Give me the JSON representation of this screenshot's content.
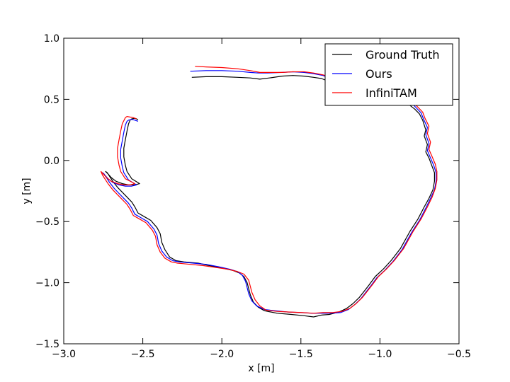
{
  "chart_data": {
    "type": "line",
    "title": "",
    "xlabel": "x [m]",
    "ylabel": "y [m]",
    "xlim": [
      -3.0,
      -0.5
    ],
    "ylim": [
      -1.5,
      1.0
    ],
    "grid": false,
    "legend_position": "top-right",
    "xticks": [
      -3.0,
      -2.5,
      -2.0,
      -1.5,
      -1.0,
      -0.5
    ],
    "yticks": [
      -1.5,
      -1.0,
      -0.5,
      0.0,
      0.5,
      1.0
    ],
    "xtick_labels": [
      "−3.0",
      "−2.5",
      "−2.0",
      "−1.5",
      "−1.0",
      "−0.5"
    ],
    "ytick_labels": [
      "−1.5",
      "−1.0",
      "−0.5",
      "0.0",
      "0.5",
      "1.0"
    ],
    "series": [
      {
        "name": "Ground Truth",
        "color": "#000000",
        "x": [
          -2.19,
          -2.1,
          -2.0,
          -1.9,
          -1.82,
          -1.76,
          -1.7,
          -1.62,
          -1.55,
          -1.48,
          -1.42,
          -1.37,
          -1.33,
          -1.3,
          -1.27,
          -1.22,
          -1.15,
          -1.08,
          -1.0,
          -0.93,
          -0.87,
          -0.82,
          -0.78,
          -0.75,
          -0.73,
          -0.71,
          -0.72,
          -0.7,
          -0.71,
          -0.69,
          -0.67,
          -0.655,
          -0.655,
          -0.665,
          -0.69,
          -0.72,
          -0.76,
          -0.81,
          -0.87,
          -0.93,
          -0.98,
          -1.03,
          -1.07,
          -1.1,
          -1.13,
          -1.17,
          -1.21,
          -1.26,
          -1.32,
          -1.37,
          -1.42,
          -1.48,
          -1.56,
          -1.65,
          -1.73,
          -1.77,
          -1.8,
          -1.82,
          -1.84,
          -1.86,
          -1.89,
          -1.93,
          -2.0,
          -2.08,
          -2.15,
          -2.24,
          -2.29,
          -2.33,
          -2.36,
          -2.38,
          -2.39,
          -2.41,
          -2.45,
          -2.49,
          -2.53,
          -2.55,
          -2.57,
          -2.6,
          -2.63,
          -2.66,
          -2.69,
          -2.71,
          -2.725,
          -2.735,
          -2.72,
          -2.7,
          -2.67,
          -2.63,
          -2.59,
          -2.55,
          -2.52,
          -2.57,
          -2.6,
          -2.61,
          -2.62,
          -2.62,
          -2.61,
          -2.6,
          -2.59,
          -2.58,
          -2.57,
          -2.55,
          -2.54,
          -2.53
        ],
        "y": [
          0.68,
          0.685,
          0.685,
          0.68,
          0.675,
          0.665,
          0.675,
          0.69,
          0.695,
          0.69,
          0.68,
          0.67,
          0.65,
          0.635,
          0.62,
          0.6,
          0.58,
          0.56,
          0.55,
          0.53,
          0.5,
          0.46,
          0.42,
          0.38,
          0.33,
          0.25,
          0.2,
          0.13,
          0.07,
          0.02,
          -0.05,
          -0.1,
          -0.17,
          -0.24,
          -0.31,
          -0.38,
          -0.48,
          -0.58,
          -0.72,
          -0.82,
          -0.89,
          -0.95,
          -1.02,
          -1.07,
          -1.12,
          -1.17,
          -1.21,
          -1.24,
          -1.26,
          -1.265,
          -1.28,
          -1.27,
          -1.26,
          -1.25,
          -1.23,
          -1.2,
          -1.16,
          -1.1,
          -1.0,
          -0.95,
          -0.92,
          -0.9,
          -0.88,
          -0.86,
          -0.84,
          -0.83,
          -0.82,
          -0.79,
          -0.73,
          -0.67,
          -0.6,
          -0.55,
          -0.49,
          -0.46,
          -0.43,
          -0.38,
          -0.34,
          -0.3,
          -0.26,
          -0.22,
          -0.17,
          -0.13,
          -0.1,
          -0.09,
          -0.11,
          -0.14,
          -0.17,
          -0.19,
          -0.2,
          -0.2,
          -0.19,
          -0.15,
          -0.09,
          -0.04,
          0.03,
          0.1,
          0.17,
          0.24,
          0.3,
          0.33,
          0.34,
          0.345,
          0.34,
          0.33
        ]
      },
      {
        "name": "Ours",
        "color": "#0000ff",
        "x": [
          -2.2,
          -2.1,
          -2.0,
          -1.9,
          -1.82,
          -1.77,
          -1.71,
          -1.62,
          -1.55,
          -1.48,
          -1.42,
          -1.36,
          -1.32,
          -1.29,
          -1.25,
          -1.19,
          -1.13,
          -1.05,
          -0.98,
          -0.91,
          -0.85,
          -0.8,
          -0.77,
          -0.74,
          -0.725,
          -0.7,
          -0.71,
          -0.69,
          -0.7,
          -0.68,
          -0.66,
          -0.645,
          -0.645,
          -0.655,
          -0.68,
          -0.71,
          -0.75,
          -0.8,
          -0.86,
          -0.92,
          -0.97,
          -1.02,
          -1.06,
          -1.09,
          -1.12,
          -1.16,
          -1.2,
          -1.25,
          -1.31,
          -1.37,
          -1.43,
          -1.5,
          -1.58,
          -1.66,
          -1.73,
          -1.78,
          -1.81,
          -1.83,
          -1.85,
          -1.87,
          -1.9,
          -1.95,
          -2.02,
          -2.1,
          -2.18,
          -2.27,
          -2.31,
          -2.35,
          -2.38,
          -2.4,
          -2.41,
          -2.43,
          -2.47,
          -2.51,
          -2.55,
          -2.57,
          -2.59,
          -2.62,
          -2.65,
          -2.68,
          -2.71,
          -2.73,
          -2.745,
          -2.755,
          -2.74,
          -2.72,
          -2.69,
          -2.65,
          -2.61,
          -2.57,
          -2.54,
          -2.59,
          -2.62,
          -2.63,
          -2.64,
          -2.64,
          -2.63,
          -2.62,
          -2.61,
          -2.6,
          -2.59,
          -2.57,
          -2.55,
          -2.53
        ],
        "y": [
          0.73,
          0.735,
          0.735,
          0.73,
          0.72,
          0.715,
          0.715,
          0.72,
          0.725,
          0.72,
          0.71,
          0.695,
          0.675,
          0.655,
          0.635,
          0.615,
          0.595,
          0.575,
          0.56,
          0.54,
          0.51,
          0.47,
          0.43,
          0.39,
          0.34,
          0.27,
          0.21,
          0.14,
          0.08,
          0.02,
          -0.04,
          -0.1,
          -0.17,
          -0.24,
          -0.31,
          -0.39,
          -0.49,
          -0.59,
          -0.73,
          -0.83,
          -0.9,
          -0.96,
          -1.03,
          -1.08,
          -1.13,
          -1.18,
          -1.22,
          -1.245,
          -1.25,
          -1.25,
          -1.25,
          -1.245,
          -1.24,
          -1.23,
          -1.22,
          -1.19,
          -1.15,
          -1.09,
          -0.99,
          -0.94,
          -0.91,
          -0.89,
          -0.87,
          -0.85,
          -0.84,
          -0.83,
          -0.82,
          -0.79,
          -0.74,
          -0.68,
          -0.61,
          -0.56,
          -0.5,
          -0.47,
          -0.44,
          -0.39,
          -0.35,
          -0.31,
          -0.27,
          -0.23,
          -0.18,
          -0.14,
          -0.11,
          -0.1,
          -0.12,
          -0.15,
          -0.18,
          -0.2,
          -0.21,
          -0.21,
          -0.2,
          -0.16,
          -0.1,
          -0.05,
          0.02,
          0.09,
          0.16,
          0.23,
          0.29,
          0.32,
          0.33,
          0.335,
          0.33,
          0.32
        ]
      },
      {
        "name": "InfiniTAM",
        "color": "#ff0000",
        "x": [
          -2.17,
          -2.1,
          -2.0,
          -1.9,
          -1.82,
          -1.76,
          -1.7,
          -1.62,
          -1.55,
          -1.48,
          -1.42,
          -1.36,
          -1.31,
          -1.28,
          -1.24,
          -1.18,
          -1.12,
          -1.04,
          -0.97,
          -0.9,
          -0.84,
          -0.79,
          -0.76,
          -0.73,
          -0.715,
          -0.69,
          -0.7,
          -0.68,
          -0.69,
          -0.67,
          -0.65,
          -0.64,
          -0.64,
          -0.65,
          -0.67,
          -0.7,
          -0.74,
          -0.79,
          -0.85,
          -0.91,
          -0.96,
          -1.01,
          -1.05,
          -1.08,
          -1.11,
          -1.15,
          -1.19,
          -1.24,
          -1.3,
          -1.36,
          -1.42,
          -1.49,
          -1.57,
          -1.65,
          -1.72,
          -1.76,
          -1.79,
          -1.81,
          -1.83,
          -1.86,
          -1.9,
          -1.96,
          -2.04,
          -2.12,
          -2.2,
          -2.28,
          -2.32,
          -2.36,
          -2.39,
          -2.41,
          -2.42,
          -2.44,
          -2.48,
          -2.52,
          -2.56,
          -2.58,
          -2.6,
          -2.63,
          -2.66,
          -2.69,
          -2.72,
          -2.74,
          -2.755,
          -2.765,
          -2.75,
          -2.73,
          -2.7,
          -2.66,
          -2.62,
          -2.58,
          -2.55,
          -2.61,
          -2.64,
          -2.65,
          -2.66,
          -2.66,
          -2.65,
          -2.64,
          -2.63,
          -2.61,
          -2.6,
          -2.58,
          -2.56,
          -2.54
        ],
        "y": [
          0.77,
          0.765,
          0.76,
          0.75,
          0.735,
          0.72,
          0.72,
          0.72,
          0.725,
          0.725,
          0.715,
          0.7,
          0.68,
          0.66,
          0.64,
          0.62,
          0.6,
          0.58,
          0.565,
          0.545,
          0.515,
          0.475,
          0.435,
          0.395,
          0.345,
          0.28,
          0.22,
          0.15,
          0.09,
          0.03,
          -0.03,
          -0.09,
          -0.16,
          -0.23,
          -0.3,
          -0.38,
          -0.48,
          -0.58,
          -0.72,
          -0.82,
          -0.89,
          -0.95,
          -1.02,
          -1.07,
          -1.12,
          -1.17,
          -1.21,
          -1.235,
          -1.245,
          -1.245,
          -1.25,
          -1.245,
          -1.24,
          -1.235,
          -1.225,
          -1.19,
          -1.14,
          -1.08,
          -0.98,
          -0.93,
          -0.91,
          -0.89,
          -0.875,
          -0.86,
          -0.85,
          -0.84,
          -0.83,
          -0.8,
          -0.75,
          -0.69,
          -0.62,
          -0.57,
          -0.51,
          -0.48,
          -0.45,
          -0.4,
          -0.36,
          -0.32,
          -0.28,
          -0.24,
          -0.19,
          -0.15,
          -0.12,
          -0.09,
          -0.11,
          -0.14,
          -0.17,
          -0.19,
          -0.2,
          -0.2,
          -0.19,
          -0.15,
          -0.09,
          -0.04,
          0.03,
          0.1,
          0.17,
          0.24,
          0.3,
          0.35,
          0.36,
          0.355,
          0.35,
          0.34
        ]
      }
    ]
  }
}
